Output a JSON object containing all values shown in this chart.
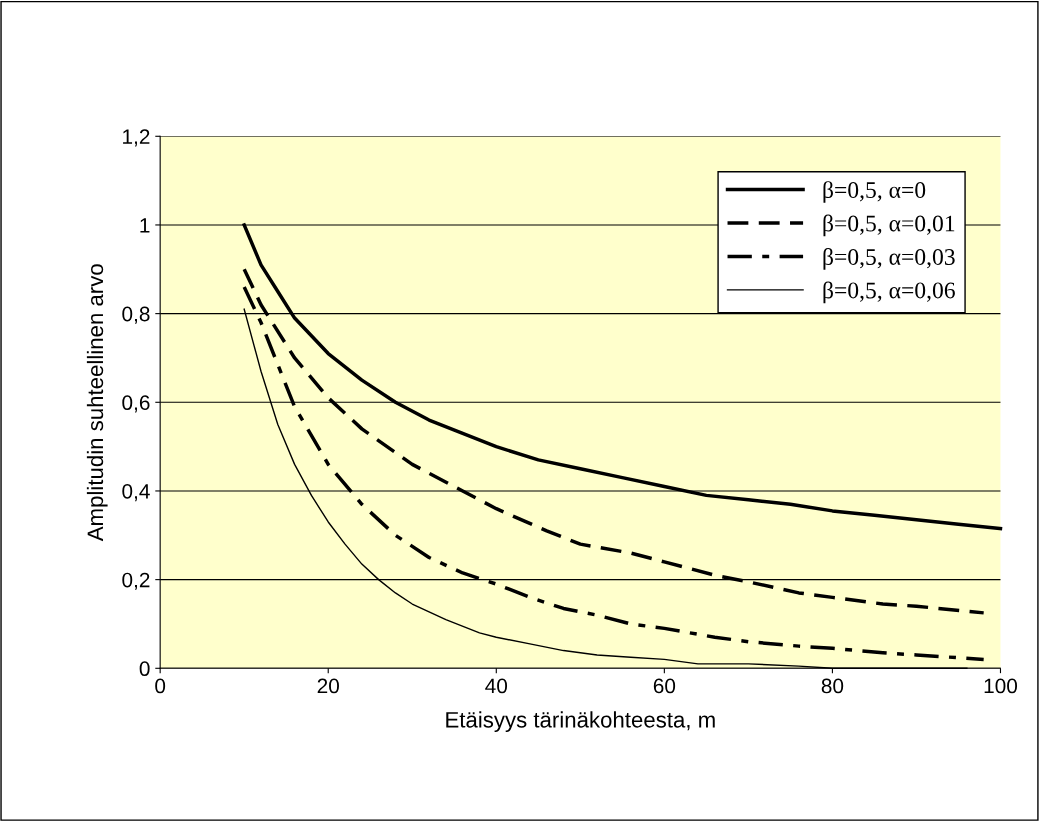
{
  "chart_data": {
    "type": "line",
    "xlabel": "Etäisyys tärinäkohteesta, m",
    "ylabel": "Amplitudin suhteellinen arvo",
    "xlim": [
      0,
      100
    ],
    "xticks": [
      0,
      20,
      40,
      60,
      80,
      100
    ],
    "ylim": [
      0,
      1.2
    ],
    "yticks": [
      0,
      {
        "value": 0.2,
        "label": "0,2"
      },
      {
        "value": 0.4,
        "label": "0,4"
      },
      {
        "value": 0.6,
        "label": "0,6"
      },
      {
        "value": 0.8,
        "label": "0,8"
      },
      1,
      {
        "value": 1.2,
        "label": "1,2"
      }
    ],
    "grid": "y",
    "legend": "top right",
    "marker": "none",
    "series": [
      {
        "name": "β=0,5, α=0",
        "color": "#000000",
        "line_style": "solid",
        "x": [
          10,
          12,
          14,
          16,
          18,
          20,
          24,
          28,
          32,
          36,
          40,
          45,
          50,
          55,
          60,
          65,
          70,
          75,
          80,
          85,
          90,
          95,
          100
        ],
        "values": [
          1.0,
          0.91,
          0.85,
          0.79,
          0.75,
          0.71,
          0.65,
          0.6,
          0.56,
          0.53,
          0.5,
          0.47,
          0.45,
          0.43,
          0.41,
          0.39,
          0.38,
          0.37,
          0.355,
          0.345,
          0.335,
          0.325,
          0.315
        ]
      },
      {
        "name": "β=0,5, α=0,01",
        "color": "#000000",
        "line_style": "dashed",
        "x": [
          10,
          12,
          16,
          20,
          24,
          30,
          36,
          40,
          46,
          50,
          56,
          60,
          66,
          70,
          76,
          80,
          86,
          90,
          98
        ],
        "values": [
          0.9,
          0.82,
          0.7,
          0.61,
          0.54,
          0.46,
          0.4,
          0.36,
          0.31,
          0.28,
          0.26,
          0.24,
          0.21,
          0.195,
          0.17,
          0.16,
          0.145,
          0.14,
          0.125
        ]
      },
      {
        "name": "β=0,5, α=0,03",
        "color": "#000000",
        "line_style": "dashdot",
        "x": [
          10,
          12,
          16,
          20,
          24,
          28,
          32,
          36,
          40,
          44,
          48,
          52,
          56,
          60,
          66,
          70,
          76,
          80,
          86,
          90,
          98
        ],
        "values": [
          0.86,
          0.78,
          0.59,
          0.46,
          0.37,
          0.3,
          0.25,
          0.215,
          0.19,
          0.16,
          0.135,
          0.12,
          0.1,
          0.09,
          0.07,
          0.06,
          0.05,
          0.045,
          0.035,
          0.03,
          0.02
        ]
      },
      {
        "name": "β=0,5, α=0,06",
        "color": "#000000",
        "line_style": "solid",
        "x": [
          10,
          12,
          14,
          16,
          18,
          20,
          22,
          24,
          26,
          28,
          30,
          34,
          38,
          40,
          44,
          48,
          52,
          56,
          60,
          64,
          70,
          76,
          80,
          90,
          96
        ],
        "values": [
          0.81,
          0.67,
          0.55,
          0.46,
          0.39,
          0.33,
          0.28,
          0.235,
          0.2,
          0.17,
          0.145,
          0.11,
          0.08,
          0.07,
          0.055,
          0.04,
          0.03,
          0.025,
          0.02,
          0.01,
          0.01,
          0.005,
          0.0,
          0.0,
          0.0
        ]
      }
    ]
  }
}
